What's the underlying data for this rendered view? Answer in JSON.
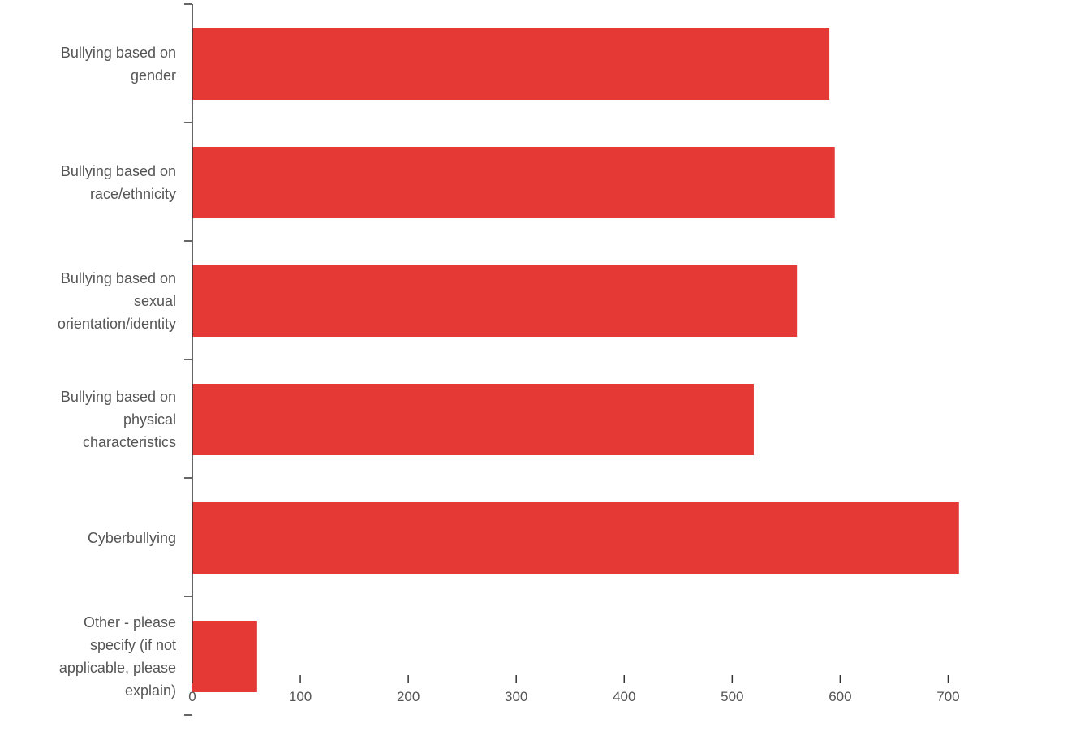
{
  "chart_data": {
    "type": "bar",
    "orientation": "horizontal",
    "categories": [
      [
        "Bullying based on",
        "gender"
      ],
      [
        "Bullying based on",
        "race/ethnicity"
      ],
      [
        "Bullying based on",
        "sexual",
        "orientation/identity"
      ],
      [
        "Bullying based on",
        "physical",
        "characteristics"
      ],
      [
        "Cyberbullying"
      ],
      [
        "Other - please",
        "specify (if not",
        "applicable, please",
        "explain)"
      ]
    ],
    "values": [
      590,
      595,
      560,
      520,
      710,
      60
    ],
    "xlim": [
      0,
      750
    ],
    "xticks": [
      0,
      100,
      200,
      300,
      400,
      500,
      600,
      700
    ],
    "xtick_labels": [
      "0",
      "100",
      "200",
      "300",
      "400",
      "500",
      "600",
      "700"
    ],
    "colors": {
      "bar": "#e53935"
    },
    "grid": false,
    "legend": "none"
  }
}
